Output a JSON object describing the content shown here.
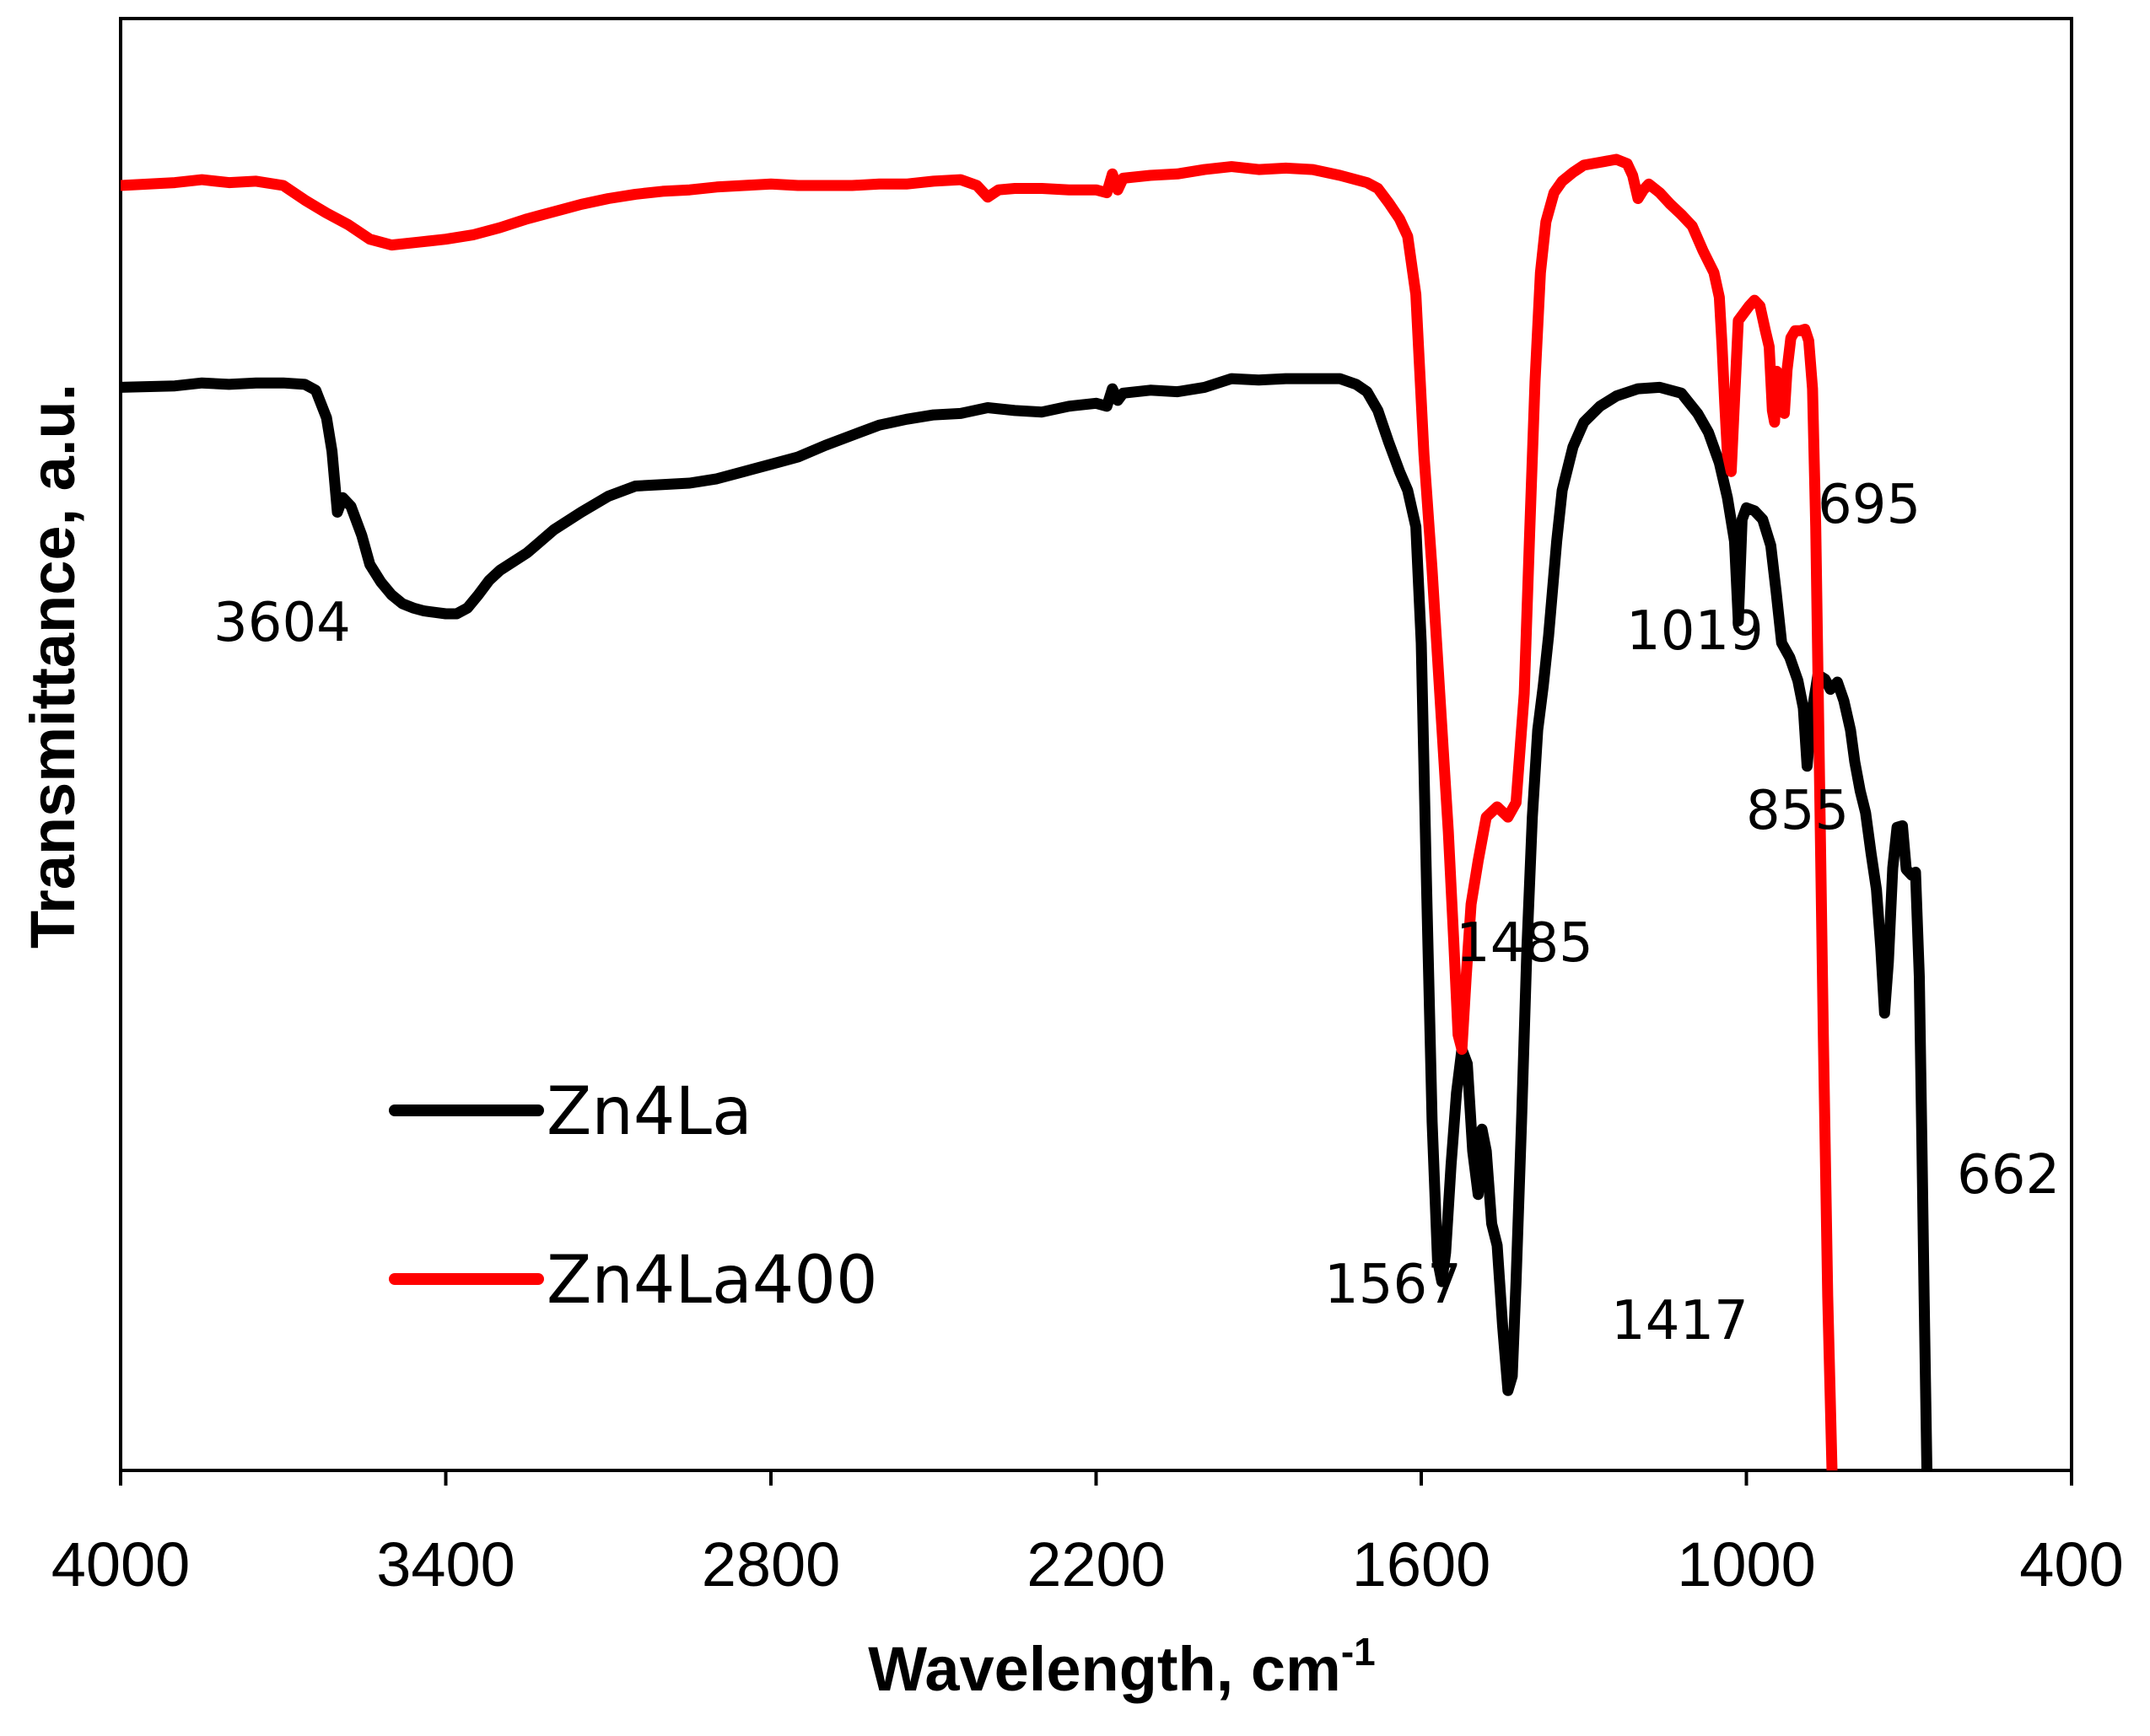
{
  "chart_data": {
    "type": "line",
    "title": "",
    "xlabel": "Wavelength, cm",
    "xlabel_superscript": "-1",
    "ylabel": "Transmittance, a.u.",
    "xlim": [
      4000,
      400
    ],
    "ylim": [
      0,
      100
    ],
    "x_ticks": [
      4000,
      3400,
      2800,
      2200,
      1600,
      1000,
      400
    ],
    "grid": false,
    "legend_position": "lower-left",
    "series": [
      {
        "name": "Zn4La",
        "color": "#000000",
        "points": [
          [
            4000,
            74.6
          ],
          [
            3900,
            74.7
          ],
          [
            3850,
            74.9
          ],
          [
            3800,
            74.8
          ],
          [
            3750,
            74.9
          ],
          [
            3700,
            74.9
          ],
          [
            3660,
            74.8
          ],
          [
            3640,
            74.4
          ],
          [
            3620,
            72.5
          ],
          [
            3610,
            70.2
          ],
          [
            3600,
            66.0
          ],
          [
            3590,
            67.0
          ],
          [
            3575,
            66.4
          ],
          [
            3555,
            64.4
          ],
          [
            3540,
            62.4
          ],
          [
            3520,
            61.2
          ],
          [
            3500,
            60.3
          ],
          [
            3480,
            59.7
          ],
          [
            3460,
            59.4
          ],
          [
            3440,
            59.2
          ],
          [
            3420,
            59.1
          ],
          [
            3400,
            59.0
          ],
          [
            3380,
            59.0
          ],
          [
            3360,
            59.4
          ],
          [
            3340,
            60.3
          ],
          [
            3320,
            61.3
          ],
          [
            3300,
            62.0
          ],
          [
            3250,
            63.2
          ],
          [
            3200,
            64.8
          ],
          [
            3150,
            66.0
          ],
          [
            3100,
            67.1
          ],
          [
            3050,
            67.8
          ],
          [
            3000,
            67.9
          ],
          [
            2950,
            68.0
          ],
          [
            2900,
            68.3
          ],
          [
            2850,
            68.8
          ],
          [
            2800,
            69.3
          ],
          [
            2750,
            69.8
          ],
          [
            2700,
            70.6
          ],
          [
            2650,
            71.3
          ],
          [
            2600,
            72.0
          ],
          [
            2550,
            72.4
          ],
          [
            2500,
            72.7
          ],
          [
            2450,
            72.8
          ],
          [
            2400,
            73.2
          ],
          [
            2350,
            73.0
          ],
          [
            2300,
            72.9
          ],
          [
            2250,
            73.3
          ],
          [
            2200,
            73.5
          ],
          [
            2180,
            73.3
          ],
          [
            2170,
            74.5
          ],
          [
            2160,
            73.7
          ],
          [
            2150,
            74.2
          ],
          [
            2100,
            74.4
          ],
          [
            2050,
            74.3
          ],
          [
            2000,
            74.6
          ],
          [
            1950,
            75.2
          ],
          [
            1900,
            75.1
          ],
          [
            1850,
            75.2
          ],
          [
            1800,
            75.2
          ],
          [
            1750,
            75.2
          ],
          [
            1720,
            74.8
          ],
          [
            1700,
            74.3
          ],
          [
            1680,
            73.0
          ],
          [
            1660,
            70.8
          ],
          [
            1640,
            68.8
          ],
          [
            1625,
            67.5
          ],
          [
            1610,
            65.0
          ],
          [
            1600,
            57.0
          ],
          [
            1590,
            40.0
          ],
          [
            1580,
            24.0
          ],
          [
            1570,
            14.5
          ],
          [
            1562,
            13.0
          ],
          [
            1555,
            15.0
          ],
          [
            1545,
            21.0
          ],
          [
            1535,
            26.0
          ],
          [
            1525,
            29.0
          ],
          [
            1515,
            28.0
          ],
          [
            1505,
            22.0
          ],
          [
            1495,
            19.0
          ],
          [
            1488,
            23.5
          ],
          [
            1480,
            22.0
          ],
          [
            1470,
            17.0
          ],
          [
            1460,
            15.5
          ],
          [
            1450,
            10.0
          ],
          [
            1440,
            5.5
          ],
          [
            1432,
            6.5
          ],
          [
            1425,
            13.0
          ],
          [
            1415,
            24.0
          ],
          [
            1405,
            36.0
          ],
          [
            1395,
            45.0
          ],
          [
            1385,
            51.0
          ],
          [
            1375,
            54.0
          ],
          [
            1365,
            57.5
          ],
          [
            1350,
            64.0
          ],
          [
            1340,
            67.5
          ],
          [
            1320,
            70.5
          ],
          [
            1300,
            72.2
          ],
          [
            1270,
            73.3
          ],
          [
            1240,
            74.0
          ],
          [
            1200,
            74.5
          ],
          [
            1160,
            74.6
          ],
          [
            1120,
            74.2
          ],
          [
            1090,
            72.8
          ],
          [
            1070,
            71.5
          ],
          [
            1050,
            69.4
          ],
          [
            1035,
            67.0
          ],
          [
            1022,
            64.0
          ],
          [
            1015,
            58.5
          ],
          [
            1008,
            65.5
          ],
          [
            1000,
            66.3
          ],
          [
            985,
            66.1
          ],
          [
            970,
            65.5
          ],
          [
            955,
            63.7
          ],
          [
            945,
            60.5
          ],
          [
            935,
            57.0
          ],
          [
            920,
            56.0
          ],
          [
            905,
            54.4
          ],
          [
            895,
            52.5
          ],
          [
            888,
            48.5
          ],
          [
            880,
            52.0
          ],
          [
            868,
            54.8
          ],
          [
            855,
            54.5
          ],
          [
            845,
            53.8
          ],
          [
            832,
            54.3
          ],
          [
            820,
            53.0
          ],
          [
            808,
            51.0
          ],
          [
            800,
            48.8
          ],
          [
            790,
            46.8
          ],
          [
            780,
            45.3
          ],
          [
            770,
            42.5
          ],
          [
            760,
            40.0
          ],
          [
            752,
            36.0
          ],
          [
            745,
            31.5
          ],
          [
            738,
            35.0
          ],
          [
            730,
            41.5
          ],
          [
            722,
            44.3
          ],
          [
            712,
            44.4
          ],
          [
            705,
            41.4
          ],
          [
            695,
            41.0
          ],
          [
            688,
            41.2
          ],
          [
            681,
            34.0
          ],
          [
            676,
            22.0
          ],
          [
            672,
            12.0
          ],
          [
            667,
            0.0
          ]
        ]
      },
      {
        "name": "Zn4La400",
        "color": "#ff0000",
        "points": [
          [
            4000,
            88.5
          ],
          [
            3900,
            88.7
          ],
          [
            3850,
            88.9
          ],
          [
            3800,
            88.7
          ],
          [
            3750,
            88.8
          ],
          [
            3700,
            88.5
          ],
          [
            3660,
            87.5
          ],
          [
            3620,
            86.6
          ],
          [
            3580,
            85.8
          ],
          [
            3540,
            84.8
          ],
          [
            3500,
            84.4
          ],
          [
            3450,
            84.6
          ],
          [
            3400,
            84.8
          ],
          [
            3350,
            85.1
          ],
          [
            3300,
            85.6
          ],
          [
            3250,
            86.2
          ],
          [
            3200,
            86.7
          ],
          [
            3150,
            87.2
          ],
          [
            3100,
            87.6
          ],
          [
            3050,
            87.9
          ],
          [
            3000,
            88.1
          ],
          [
            2950,
            88.2
          ],
          [
            2900,
            88.4
          ],
          [
            2850,
            88.5
          ],
          [
            2800,
            88.6
          ],
          [
            2750,
            88.5
          ],
          [
            2700,
            88.5
          ],
          [
            2650,
            88.5
          ],
          [
            2600,
            88.6
          ],
          [
            2550,
            88.6
          ],
          [
            2500,
            88.8
          ],
          [
            2450,
            88.9
          ],
          [
            2420,
            88.5
          ],
          [
            2400,
            87.7
          ],
          [
            2380,
            88.2
          ],
          [
            2350,
            88.3
          ],
          [
            2300,
            88.3
          ],
          [
            2250,
            88.2
          ],
          [
            2200,
            88.2
          ],
          [
            2180,
            88.0
          ],
          [
            2170,
            89.3
          ],
          [
            2160,
            88.2
          ],
          [
            2150,
            89.0
          ],
          [
            2100,
            89.2
          ],
          [
            2050,
            89.3
          ],
          [
            2000,
            89.6
          ],
          [
            1950,
            89.8
          ],
          [
            1900,
            89.6
          ],
          [
            1850,
            89.7
          ],
          [
            1800,
            89.6
          ],
          [
            1750,
            89.2
          ],
          [
            1700,
            88.7
          ],
          [
            1680,
            88.3
          ],
          [
            1660,
            87.3
          ],
          [
            1640,
            86.2
          ],
          [
            1625,
            85.0
          ],
          [
            1610,
            81.0
          ],
          [
            1595,
            70.0
          ],
          [
            1580,
            62.0
          ],
          [
            1565,
            53.0
          ],
          [
            1550,
            44.0
          ],
          [
            1540,
            36.5
          ],
          [
            1532,
            30.0
          ],
          [
            1525,
            29.0
          ],
          [
            1517,
            34.0
          ],
          [
            1508,
            39.0
          ],
          [
            1495,
            42.0
          ],
          [
            1480,
            45.0
          ],
          [
            1460,
            45.7
          ],
          [
            1440,
            45.0
          ],
          [
            1425,
            46.0
          ],
          [
            1410,
            53.5
          ],
          [
            1400,
            64.5
          ],
          [
            1390,
            75.0
          ],
          [
            1380,
            82.5
          ],
          [
            1370,
            86.0
          ],
          [
            1355,
            88.0
          ],
          [
            1340,
            88.8
          ],
          [
            1320,
            89.4
          ],
          [
            1300,
            89.9
          ],
          [
            1270,
            90.1
          ],
          [
            1240,
            90.3
          ],
          [
            1220,
            90.0
          ],
          [
            1210,
            89.2
          ],
          [
            1200,
            87.6
          ],
          [
            1190,
            88.2
          ],
          [
            1180,
            88.6
          ],
          [
            1160,
            88.0
          ],
          [
            1140,
            87.2
          ],
          [
            1120,
            86.5
          ],
          [
            1100,
            85.7
          ],
          [
            1080,
            84.0
          ],
          [
            1060,
            82.5
          ],
          [
            1050,
            80.8
          ],
          [
            1045,
            77.5
          ],
          [
            1040,
            73.5
          ],
          [
            1035,
            70.0
          ],
          [
            1028,
            68.8
          ],
          [
            1023,
            72.8
          ],
          [
            1015,
            79.2
          ],
          [
            1005,
            79.7
          ],
          [
            995,
            80.2
          ],
          [
            985,
            80.6
          ],
          [
            975,
            80.2
          ],
          [
            965,
            78.5
          ],
          [
            958,
            77.4
          ],
          [
            952,
            73.0
          ],
          [
            948,
            72.2
          ],
          [
            944,
            75.7
          ],
          [
            936,
            74.5
          ],
          [
            930,
            72.8
          ],
          [
            925,
            75.8
          ],
          [
            918,
            78.0
          ],
          [
            910,
            78.5
          ],
          [
            900,
            78.5
          ],
          [
            892,
            78.6
          ],
          [
            885,
            77.8
          ],
          [
            878,
            74.5
          ],
          [
            872,
            65.0
          ],
          [
            866,
            50.0
          ],
          [
            858,
            30.0
          ],
          [
            850,
            12.0
          ],
          [
            842,
            0.0
          ]
        ]
      }
    ],
    "annotations": [
      "3604",
      "1485",
      "1567",
      "1417",
      "1019",
      "855",
      "695",
      "662"
    ]
  }
}
